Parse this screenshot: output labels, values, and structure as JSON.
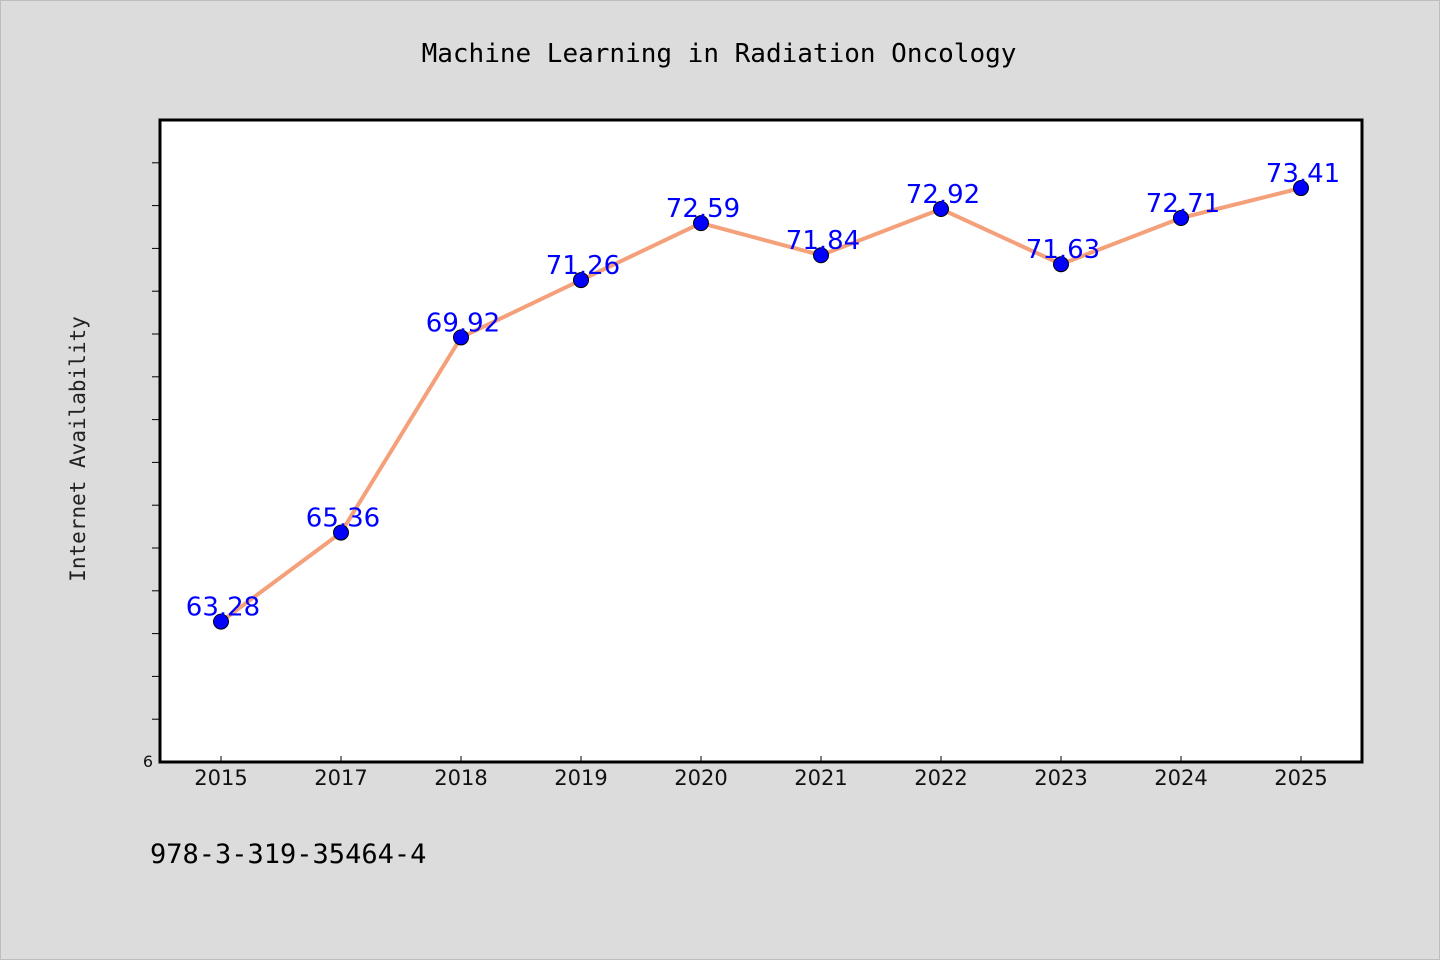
{
  "chart_data": {
    "type": "line",
    "title": "Machine Learning in Radiation Oncology",
    "xlabel": "",
    "ylabel": "Internet Availability",
    "categories": [
      "2015",
      "2017",
      "2018",
      "2019",
      "2020",
      "2021",
      "2022",
      "2023",
      "2024",
      "2025"
    ],
    "series": [
      {
        "values": [
          63.28,
          65.36,
          69.92,
          71.26,
          72.59,
          71.84,
          72.92,
          71.63,
          72.71,
          73.41
        ]
      }
    ],
    "data_labels": [
      "63.28",
      "65.36",
      "69.92",
      "71.26",
      "72.59",
      "71.84",
      "72.92",
      "71.63",
      "72.71",
      "73.41"
    ],
    "ylim": [
      60,
      75
    ],
    "y_tick_label": "6",
    "grid": false,
    "legend": "none",
    "line_color": "#f4a07a",
    "marker_color": "#0000ff",
    "label_color": "#0000ff"
  },
  "annotation": "978-3-319-35464-4"
}
